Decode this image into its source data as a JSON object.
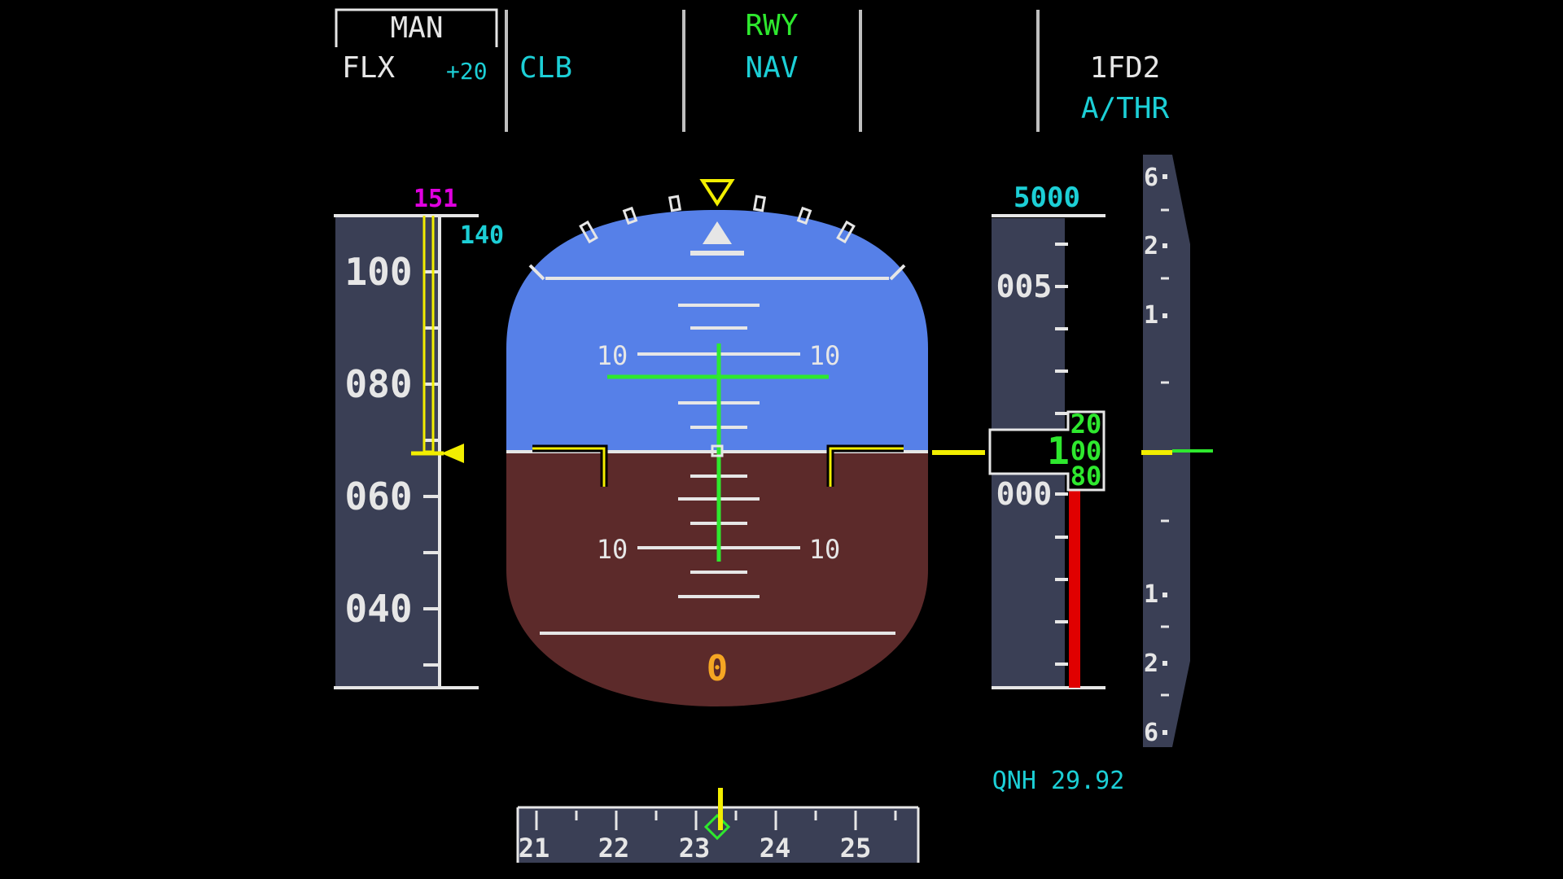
{
  "colors": {
    "white": "#e6e6e6",
    "green": "#2ee82e",
    "cyan": "#1ccfd6",
    "magenta": "#e000e0",
    "yellow": "#f2ee00",
    "amber": "#f5a623",
    "red": "#e00000",
    "tape": "#3a3f55",
    "sky": "#5680e8",
    "ground": "#5c2a2a"
  },
  "fma": {
    "col1": {
      "man": "MAN",
      "flx": "FLX",
      "flx_temp": "+20"
    },
    "col2": {
      "mode": "CLB"
    },
    "col3": {
      "top": "RWY",
      "bottom": "NAV"
    },
    "col5": {
      "fd": "1FD2",
      "athr": "A/THR"
    }
  },
  "speed_tape": {
    "target_speed": "151",
    "selected_speed": "140",
    "labels": [
      "100",
      "080",
      "060",
      "040"
    ],
    "current_speed": 68
  },
  "attitude": {
    "pitch_deg": 0,
    "bank_deg": 0,
    "pitch_labels": [
      "10",
      "10",
      "10",
      "10"
    ],
    "radio_altitude": "0"
  },
  "altitude_tape": {
    "selected_altitude": "5000",
    "labels": [
      "005",
      "000"
    ],
    "drum_hundreds": "1",
    "drum_values": [
      "20",
      "00",
      "80"
    ],
    "baro": "QNH 29.92"
  },
  "vsi": {
    "labels_up": [
      "6",
      "2",
      "1"
    ],
    "labels_down": [
      "1",
      "2",
      "6"
    ],
    "value_fpm": 0
  },
  "heading": {
    "labels": [
      "21",
      "22",
      "23",
      "24",
      "25"
    ],
    "current_heading": 233
  }
}
